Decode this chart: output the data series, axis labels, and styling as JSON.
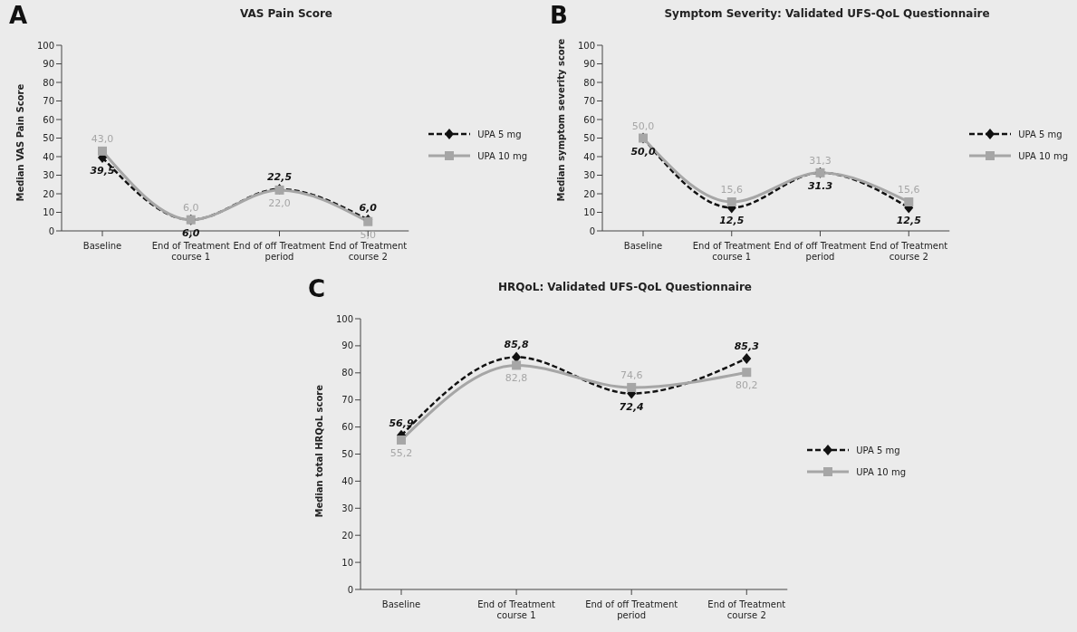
{
  "chart_data": [
    {
      "type": "line",
      "title": "VAS Pain Score",
      "annotations": [
        "A"
      ],
      "ylabel": "Median VAS Pain Score",
      "categories": [
        "Baseline",
        "End of Treatment course 1",
        "End of off Treatment period",
        "End of Treatment course 2"
      ],
      "ylim": [
        0,
        100
      ],
      "yticks": [
        0,
        10,
        20,
        30,
        40,
        50,
        60,
        70,
        80,
        90,
        100
      ],
      "grid": false,
      "legend": "right",
      "series": [
        {
          "name": "UPA 5 mg",
          "color": "#111111",
          "marker": "diamond",
          "line_style": "dashed",
          "values": [
            39.5,
            6.0,
            22.5,
            6.0
          ],
          "value_labels": [
            "39,5",
            "6,0",
            "22,5",
            "6,0"
          ]
        },
        {
          "name": "UPA 10 mg",
          "color": "#a6a6a6",
          "marker": "square",
          "line_style": "solid",
          "values": [
            43.0,
            6.0,
            22.0,
            5.0
          ],
          "value_labels": [
            "43,0",
            "6,0",
            "22,0",
            "5,0"
          ]
        }
      ]
    },
    {
      "type": "line",
      "title": "Symptom Severity: Validated UFS-QoL Questionnaire",
      "annotations": [
        "B"
      ],
      "ylabel": "Median symptom severity score",
      "categories": [
        "Baseline",
        "End of Treatment course 1",
        "End of off Treatment period",
        "End of Treatment course 2"
      ],
      "ylim": [
        0,
        100
      ],
      "yticks": [
        0,
        10,
        20,
        30,
        40,
        50,
        60,
        70,
        80,
        90,
        100
      ],
      "grid": false,
      "legend": "right",
      "series": [
        {
          "name": "UPA 5 mg",
          "color": "#111111",
          "marker": "diamond",
          "line_style": "dashed",
          "values": [
            50.0,
            12.5,
            31.3,
            12.5
          ],
          "value_labels": [
            "50,0",
            "12,5",
            "31.3",
            "12,5"
          ]
        },
        {
          "name": "UPA 10 mg",
          "color": "#a6a6a6",
          "marker": "square",
          "line_style": "solid",
          "values": [
            50.0,
            15.6,
            31.3,
            15.6
          ],
          "value_labels": [
            "50,0",
            "15,6",
            "31,3",
            "15,6"
          ]
        }
      ]
    },
    {
      "type": "line",
      "title": "HRQoL: Validated UFS-QoL Questionnaire",
      "annotations": [
        "C"
      ],
      "ylabel": "Median total HRQoL score",
      "categories": [
        "Baseline",
        "End of Treatment course 1",
        "End of off Treatment period",
        "End of Treatment course 2"
      ],
      "ylim": [
        0,
        100
      ],
      "yticks": [
        0,
        10,
        20,
        30,
        40,
        50,
        60,
        70,
        80,
        90,
        100
      ],
      "grid": false,
      "legend": "right",
      "series": [
        {
          "name": "UPA 5 mg",
          "color": "#111111",
          "marker": "diamond",
          "line_style": "dashed",
          "values": [
            56.9,
            85.8,
            72.4,
            85.3
          ],
          "value_labels": [
            "56,9",
            "85,8",
            "72,4",
            "85,3"
          ]
        },
        {
          "name": "UPA 10 mg",
          "color": "#a6a6a6",
          "marker": "square",
          "line_style": "solid",
          "values": [
            55.2,
            82.8,
            74.6,
            80.2
          ],
          "value_labels": [
            "55,2",
            "82,8",
            "74,6",
            "80,2"
          ]
        }
      ]
    }
  ]
}
